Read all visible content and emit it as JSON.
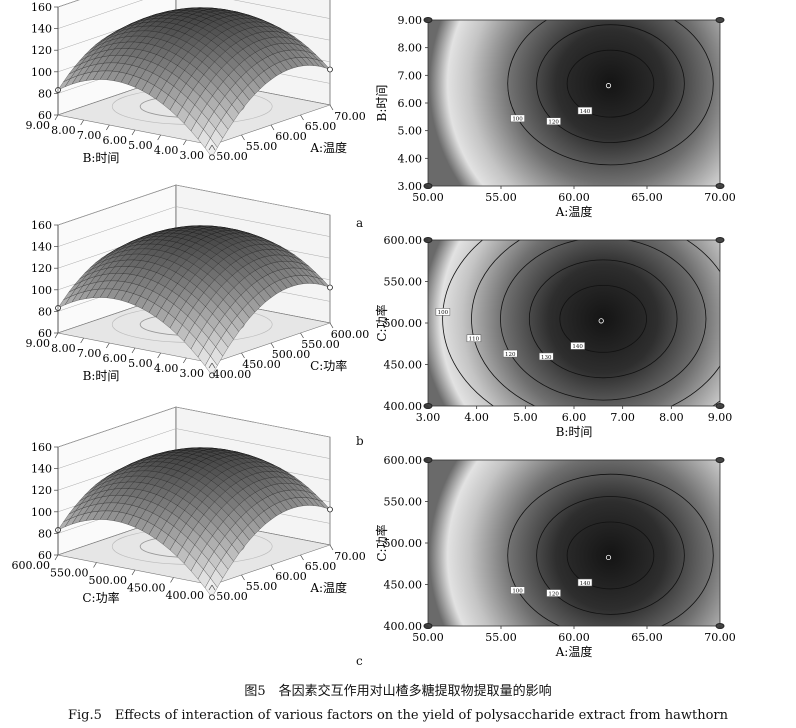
{
  "caption": {
    "cn": "图5　各因素交互作用对山楂多糖提取物提取量的影响",
    "en": "Fig.5　Effects of interaction of various factors on the yield of polysaccharide extract from hawthorn"
  },
  "chart_data": [
    {
      "panel": "a",
      "type": "surface",
      "zlim": [
        60,
        160
      ],
      "zticks": [
        "60",
        "80",
        "100",
        "120",
        "140",
        "160"
      ],
      "x_label": "A:温度",
      "x_ticks": [
        "50.00",
        "55.00",
        "60.00",
        "65.00",
        "70.00"
      ],
      "y_label": "B:时间",
      "y_ticks": [
        "3.00",
        "4.00",
        "5.00",
        "6.00",
        "7.00",
        "8.00",
        "9.00"
      ]
    },
    {
      "panel": "a",
      "type": "contour",
      "xlabel": "A:温度",
      "ylabel": "B:时间",
      "xlim": [
        50,
        70
      ],
      "ylim": [
        3,
        9
      ],
      "xticks": [
        "50.00",
        "55.00",
        "60.00",
        "65.00",
        "70.00"
      ],
      "yticks": [
        "3.00",
        "4.00",
        "5.00",
        "6.00",
        "7.00",
        "8.00",
        "9.00"
      ],
      "center": [
        62.5,
        6.7
      ],
      "contour_labels": [
        "100",
        "120",
        "140"
      ]
    },
    {
      "panel": "b",
      "type": "surface",
      "zlim": [
        60,
        160
      ],
      "zticks": [
        "60",
        "80",
        "100",
        "120",
        "140",
        "160"
      ],
      "x_label": "C:功率",
      "x_ticks": [
        "400.00",
        "450.00",
        "500.00",
        "550.00",
        "600.00"
      ],
      "y_label": "B:时间",
      "y_ticks": [
        "3.00",
        "4.00",
        "5.00",
        "6.00",
        "7.00",
        "8.00",
        "9.00"
      ]
    },
    {
      "panel": "b",
      "type": "contour",
      "xlabel": "B:时间",
      "ylabel": "C:功率",
      "xlim": [
        3,
        9
      ],
      "ylim": [
        400,
        600
      ],
      "xticks": [
        "3.00",
        "4.00",
        "5.00",
        "6.00",
        "7.00",
        "8.00",
        "9.00"
      ],
      "yticks": [
        "400.00",
        "450.00",
        "500.00",
        "550.00",
        "600.00"
      ],
      "center": [
        6.6,
        505
      ],
      "contour_labels": [
        "100",
        "110",
        "120",
        "130",
        "140"
      ]
    },
    {
      "panel": "c",
      "type": "surface",
      "zlim": [
        60,
        160
      ],
      "zticks": [
        "60",
        "80",
        "100",
        "120",
        "140",
        "160"
      ],
      "x_label": "A:温度",
      "x_ticks": [
        "50.00",
        "55.00",
        "60.00",
        "65.00",
        "70.00"
      ],
      "y_label": "C:功率",
      "y_ticks": [
        "400.00",
        "450.00",
        "500.00",
        "550.00",
        "600.00"
      ]
    },
    {
      "panel": "c",
      "type": "contour",
      "xlabel": "A:温度",
      "ylabel": "C:功率",
      "xlim": [
        50,
        70
      ],
      "ylim": [
        400,
        600
      ],
      "xticks": [
        "50.00",
        "55.00",
        "60.00",
        "65.00",
        "70.00"
      ],
      "yticks": [
        "400.00",
        "450.00",
        "500.00",
        "550.00",
        "600.00"
      ],
      "center": [
        62.5,
        485
      ],
      "contour_labels": [
        "100",
        "120",
        "140"
      ]
    }
  ]
}
